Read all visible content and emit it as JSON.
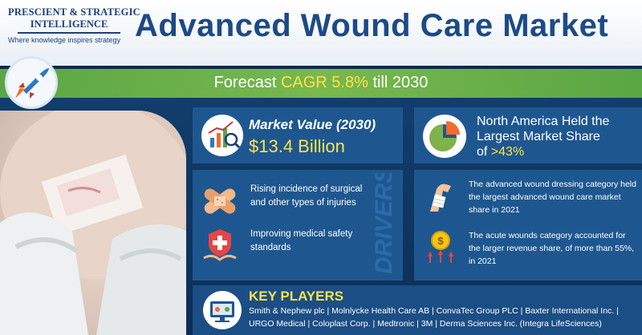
{
  "logo": {
    "line1": "PRESCIENT & STRATEGIC",
    "line2": "INTELLIGENCE",
    "tagline": "Where knowledge inspires strategy"
  },
  "header": {
    "title": "Advanced Wound Care Market"
  },
  "cagr": {
    "prefix": "Forecast ",
    "highlight": "CAGR 5.8%",
    "suffix": " till 2030"
  },
  "market_value": {
    "label": "Market Value (2030)",
    "value": "$13.4 Billion"
  },
  "north_america": {
    "line1": "North America Held the",
    "line2": "Largest Market Share",
    "line3_prefix": "of ",
    "line3_value": ">43%"
  },
  "drivers": {
    "title": "DRIVERS",
    "items": [
      "Rising incidence of surgical and other types of injuries",
      "Improving medical safety standards"
    ]
  },
  "right_panel": {
    "items": [
      "The advanced wound dressing category held the largest advanced wound care market share in 2021",
      "The acute wounds category accounted for the larger revenue share, of more than 55%, in 2021"
    ]
  },
  "key_players": {
    "title": "KEY PLAYERS",
    "line1": "Smith & Nephew plc | Molnlycke Health Care AB | ConvaTec Group PLC | Baxter International Inc. |",
    "line2": "URGO Medical | Coloplast Corp. | Medtronic | 3M | Derma Sciences Inc. (Integra LifeSciences)"
  },
  "colors": {
    "accent_yellow": "#ffe14a",
    "brand_blue": "#1d4a86",
    "cagr_green": "#6aaf4a",
    "card_blue": "#1e5790"
  },
  "icons": [
    "rocket-icon",
    "market-chart-icon",
    "pie-chart-icon",
    "bandage-icon",
    "medical-shield-icon",
    "bandaged-arm-icon",
    "revenue-coin-icon",
    "key-players-icon"
  ]
}
